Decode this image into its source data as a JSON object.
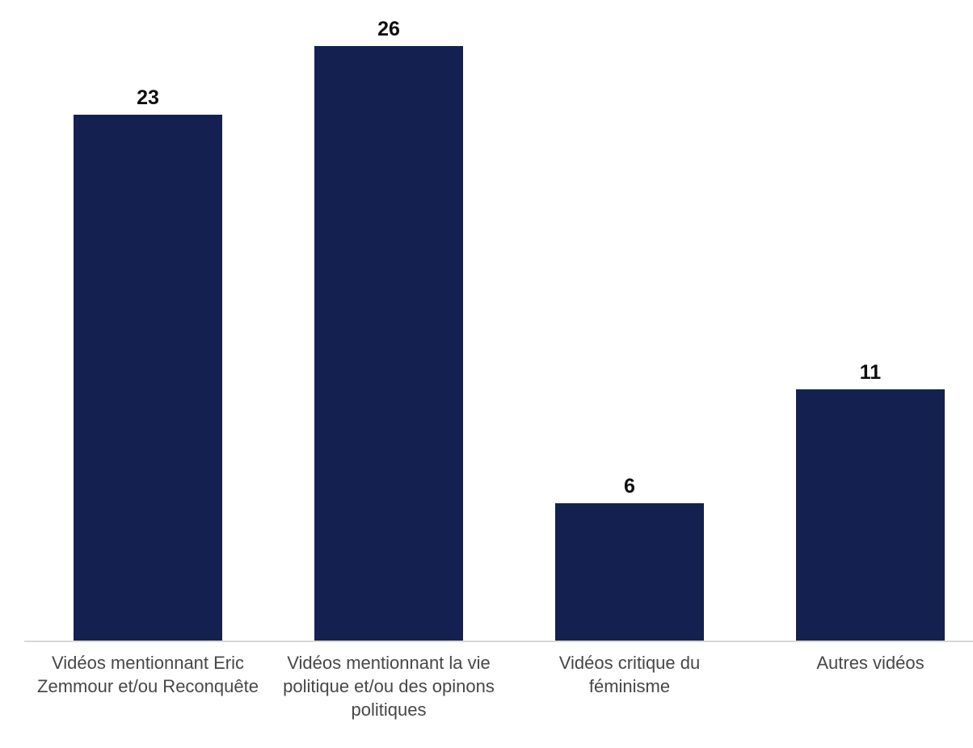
{
  "chart_data": {
    "type": "bar",
    "categories": [
      "Vidéos mentionnant Eric Zemmour et/ou Reconquête",
      "Vidéos mentionnant la vie politique et/ou des opinons politiques",
      "Vidéos critique du féminisme",
      "Autres vidéos"
    ],
    "values": [
      23,
      26,
      6,
      11
    ],
    "title": "",
    "xlabel": "",
    "ylabel": "",
    "ylim": [
      0,
      26
    ],
    "grid": false,
    "legend": false,
    "value_labels_shown": true,
    "baseline_shown": true
  },
  "style": {
    "bar_color": "#142150",
    "value_label_color": "#0e0e0e",
    "category_label_color": "#474747",
    "axis_line_color": "#d8d8d8",
    "background": "#ffffff"
  }
}
